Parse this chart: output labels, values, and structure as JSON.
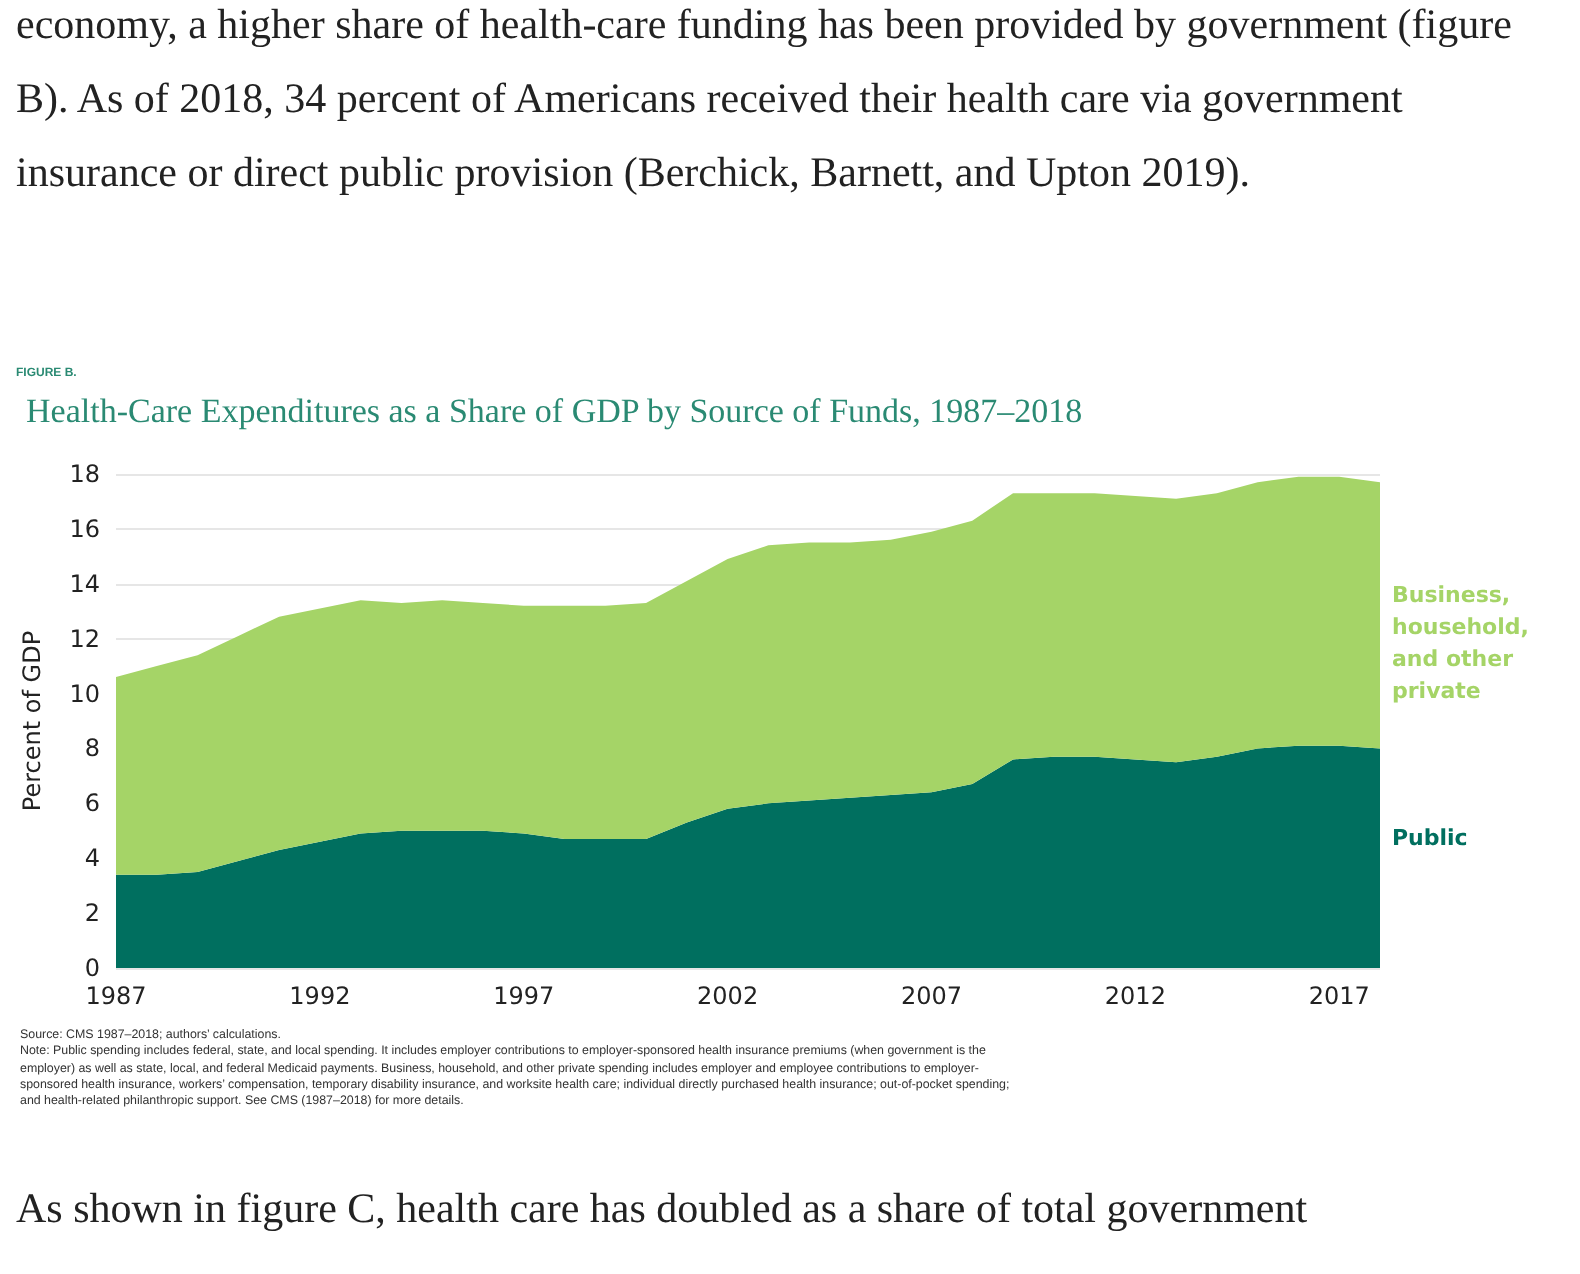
{
  "chart_data": {
    "type": "area",
    "stacked": true,
    "title": "Health-Care Expenditures as a Share of GDP by Source of Funds, 1987–2018",
    "ylabel": "Percent of GDP",
    "annotations": [
      "economy, a higher share of health-care funding has been provided by government (figure B). As of 2018, 34 percent of Americans received their health care via government insurance or direct public provision (Berchick, Barnett, and Upton 2019).",
      "FIGURE B.",
      "Source: CMS 1987–2018; authors’ calculations.",
      "Note: Public spending includes federal, state, and local spending. It includes employer contributions to employer-sponsored health insurance premiums (when government is the employer) as well as state, local, and federal Medicaid payments. Business, household, and other private spending includes employer and employee contributions to employer-sponsored health insurance, workers’ compensation, temporary disability insurance, and worksite health care; individual directly purchased health insurance; out-of-pocket spending; and health-related philanthropic support. See CMS (1987–2018) for more details.",
      "As shown in figure C, health care has doubled as a share of total government"
    ],
    "x": [
      1987,
      1988,
      1989,
      1990,
      1991,
      1992,
      1993,
      1994,
      1995,
      1996,
      1997,
      1998,
      1999,
      2000,
      2001,
      2002,
      2003,
      2004,
      2005,
      2006,
      2007,
      2008,
      2009,
      2010,
      2011,
      2012,
      2013,
      2014,
      2015,
      2016,
      2017,
      2018
    ],
    "series": [
      {
        "name": "Public",
        "color": "#006f5f",
        "values": [
          3.4,
          3.4,
          3.5,
          3.9,
          4.3,
          4.6,
          4.9,
          5.0,
          5.0,
          5.0,
          4.9,
          4.7,
          4.7,
          4.7,
          5.3,
          5.8,
          6.0,
          6.1,
          6.2,
          6.3,
          6.4,
          6.7,
          7.6,
          7.7,
          7.7,
          7.6,
          7.5,
          7.7,
          8.0,
          8.1,
          8.1,
          8.0
        ]
      },
      {
        "name": "Business, household, and other private",
        "color": "#a5d467",
        "values": [
          7.2,
          7.6,
          7.9,
          8.2,
          8.5,
          8.5,
          8.5,
          8.3,
          8.4,
          8.3,
          8.3,
          8.5,
          8.5,
          8.6,
          8.8,
          9.1,
          9.4,
          9.4,
          9.3,
          9.3,
          9.5,
          9.6,
          9.7,
          9.6,
          9.6,
          9.6,
          9.6,
          9.6,
          9.7,
          9.8,
          9.8,
          9.7
        ]
      }
    ],
    "xlim": [
      1987,
      2018
    ],
    "xticks": [
      1987,
      1992,
      1997,
      2002,
      2007,
      2012,
      2017
    ],
    "ylim": [
      0,
      18
    ],
    "yticks": [
      0,
      2,
      4,
      6,
      8,
      10,
      12,
      14,
      16,
      18
    ],
    "grid": "y",
    "legend": false
  }
}
